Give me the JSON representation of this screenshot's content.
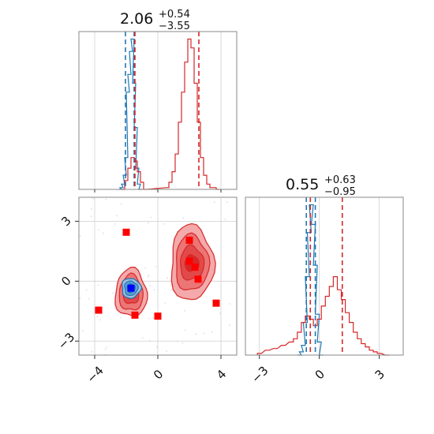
{
  "chart_data": [
    {
      "panel": "marginal-top",
      "type": "histogram",
      "title": {
        "value": "2.06",
        "plus": "+0.54",
        "minus": "−3.55"
      },
      "xlim": [
        -5,
        5
      ],
      "grid": true,
      "series": [
        {
          "color": "#1f77b4",
          "bins_x": [
            -2.4,
            -2.3,
            -2.2,
            -2.1,
            -2.0,
            -1.9,
            -1.8,
            -1.7,
            -1.6,
            -1.5,
            -1.4,
            -1.3,
            -1.2,
            -1.1
          ],
          "counts": [
            0,
            1,
            3,
            8,
            18,
            55,
            65,
            78,
            85,
            60,
            35,
            12,
            3,
            0
          ]
        },
        {
          "color": "#d62728",
          "bins_x": [
            -2.2,
            -2.0,
            -1.8,
            -1.6,
            -1.4,
            -1.2,
            -1.0,
            -0.8,
            0.6,
            0.8,
            1.0,
            1.2,
            1.4,
            1.6,
            1.8,
            2.0,
            2.2,
            2.4,
            2.6,
            2.8,
            3.0,
            3.2,
            3.4,
            3.6,
            3.8
          ],
          "counts": [
            0,
            5,
            12,
            18,
            16,
            10,
            4,
            0,
            1,
            4,
            10,
            20,
            38,
            55,
            72,
            85,
            80,
            60,
            38,
            18,
            8,
            3,
            1,
            1,
            0
          ]
        }
      ],
      "vlines": [
        {
          "x": -2.05,
          "color": "#1f77b4"
        },
        {
          "x": -1.5,
          "color": "#1f77b4"
        },
        {
          "x": -1.45,
          "color": "#d62728"
        },
        {
          "x": 2.6,
          "color": "#d62728"
        }
      ]
    },
    {
      "panel": "marginal-right",
      "type": "histogram",
      "title": {
        "value": "0.55",
        "plus": "+0.63",
        "minus": "−0.95"
      },
      "xlim": [
        -3.7,
        4.2
      ],
      "grid": true,
      "series": [
        {
          "color": "#1f77b4",
          "bins_x": [
            -1.0,
            -0.9,
            -0.8,
            -0.7,
            -0.6,
            -0.5,
            -0.4,
            -0.3,
            -0.2,
            -0.1,
            0.0,
            0.1
          ],
          "counts": [
            0,
            2,
            6,
            20,
            48,
            75,
            92,
            80,
            55,
            25,
            8,
            0
          ]
        },
        {
          "color": "#d62728",
          "bins_x": [
            -3.0,
            -2.6,
            -2.2,
            -1.8,
            -1.4,
            -1.2,
            -1.0,
            -0.8,
            -0.6,
            -0.4,
            -0.2,
            0.0,
            0.2,
            0.4,
            0.6,
            0.8,
            1.0,
            1.2,
            1.4,
            1.6,
            1.8,
            2.0,
            2.2,
            2.4,
            2.6,
            2.8,
            3.0,
            3.4
          ],
          "counts": [
            1,
            3,
            4,
            6,
            8,
            10,
            14,
            20,
            24,
            22,
            18,
            22,
            30,
            36,
            42,
            48,
            40,
            34,
            26,
            20,
            14,
            10,
            7,
            5,
            3,
            2,
            1,
            0
          ]
        }
      ],
      "vlines": [
        {
          "x": -0.65,
          "color": "#1f77b4"
        },
        {
          "x": -0.2,
          "color": "#1f77b4"
        },
        {
          "x": -0.45,
          "color": "#d62728"
        },
        {
          "x": 1.15,
          "color": "#d62728"
        }
      ]
    },
    {
      "panel": "joint",
      "type": "scatter",
      "xlim": [
        -5,
        5
      ],
      "ylim": [
        -3.7,
        4.2
      ],
      "grid": true,
      "xticks": [
        "−4",
        "0",
        "4"
      ],
      "xtick_values": [
        -4,
        0,
        4
      ],
      "yticks": [
        "−3",
        "0",
        "3"
      ],
      "ytick_values": [
        -3,
        0,
        3
      ],
      "red_points": [
        [
          -2.0,
          2.45
        ],
        [
          2.0,
          2.05
        ],
        [
          2.0,
          1.0
        ],
        [
          2.35,
          0.7
        ],
        [
          2.55,
          0.1
        ],
        [
          3.7,
          -1.1
        ],
        [
          -3.75,
          -1.45
        ],
        [
          -1.45,
          -1.7
        ],
        [
          0.0,
          -1.75
        ]
      ],
      "blue_point": [
        -1.7,
        -0.35
      ],
      "contours": [
        {
          "group": "red-left",
          "color": "#d62728",
          "center": [
            -1.7,
            -0.6
          ],
          "levels": [
            {
              "rx": 1.0,
              "ry": 1.2,
              "fill": "#f4a6a6"
            },
            {
              "rx": 0.75,
              "ry": 0.9,
              "fill": "#ec7373"
            },
            {
              "rx": 0.5,
              "ry": 0.55,
              "fill": "#e24848"
            },
            {
              "rx": 0.3,
              "ry": 0.3,
              "fill": "#d62728"
            }
          ]
        },
        {
          "group": "red-right",
          "color": "#d62728",
          "center": [
            2.15,
            0.9
          ],
          "levels": [
            {
              "rx": 1.35,
              "ry": 1.9,
              "fill": "#f4a6a6"
            },
            {
              "rx": 1.05,
              "ry": 1.4,
              "fill": "#ec7373"
            },
            {
              "rx": 0.75,
              "ry": 0.85,
              "fill": "#e24848"
            },
            {
              "rx": 0.45,
              "ry": 0.4,
              "fill": "#d62728"
            }
          ]
        },
        {
          "group": "blue",
          "color": "#1f77b4",
          "center": [
            -1.7,
            -0.35
          ],
          "levels": [
            {
              "rx": 0.6,
              "ry": 0.5,
              "fill": "#9ec4e4"
            },
            {
              "rx": 0.42,
              "ry": 0.36,
              "fill": "#5e9fd2"
            },
            {
              "rx": 0.25,
              "ry": 0.22,
              "fill": "#1f77b4"
            }
          ]
        }
      ]
    }
  ]
}
